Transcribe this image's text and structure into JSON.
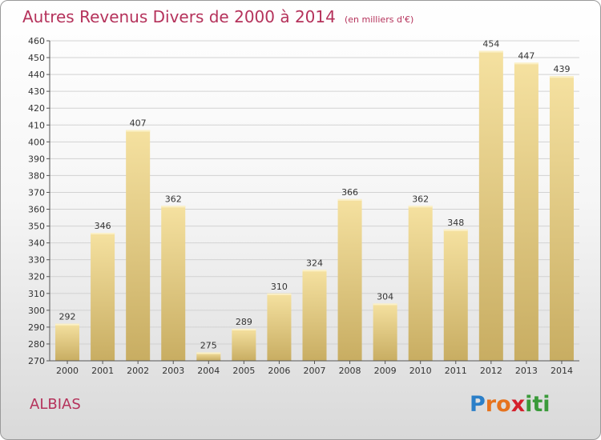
{
  "header": {
    "title": "Autres Revenus Divers de 2000 à 2014",
    "subtitle": "(en milliers d'€)"
  },
  "footer": {
    "commune": "ALBIAS",
    "logo": "Proxiti",
    "logo_letters": [
      "P",
      "r",
      "o",
      "x",
      "i",
      "t",
      "i"
    ],
    "logo_colors": [
      "#2b7fc8",
      "#e6731e",
      "#e6731e",
      "#d4202c",
      "#3a9a3a",
      "#3a9a3a",
      "#3a9a3a"
    ]
  },
  "chart_data": {
    "type": "bar",
    "categories": [
      "2000",
      "2001",
      "2002",
      "2003",
      "2004",
      "2005",
      "2006",
      "2007",
      "2008",
      "2009",
      "2010",
      "2011",
      "2012",
      "2013",
      "2014"
    ],
    "values": [
      292,
      346,
      407,
      362,
      275,
      289,
      310,
      324,
      366,
      304,
      362,
      348,
      454,
      447,
      439
    ],
    "data_labels": [
      "292",
      "346",
      "407",
      "362",
      "275",
      "289",
      "310",
      "324",
      "366",
      "304",
      "362",
      "348",
      "454",
      "447",
      "439"
    ],
    "y_ticks": [
      "270",
      "280",
      "290",
      "300",
      "310",
      "320",
      "330",
      "340",
      "350",
      "360",
      "370",
      "380",
      "390",
      "400",
      "410",
      "420",
      "430",
      "440",
      "450",
      "460"
    ],
    "ylim": [
      270,
      460
    ],
    "xlabel": "",
    "ylabel": "",
    "grid": true,
    "colors": {
      "bar_light": "#f5e1a0",
      "bar_dark": "#c8ad62",
      "grid": "#d2d2d2",
      "text": "#333333"
    }
  }
}
